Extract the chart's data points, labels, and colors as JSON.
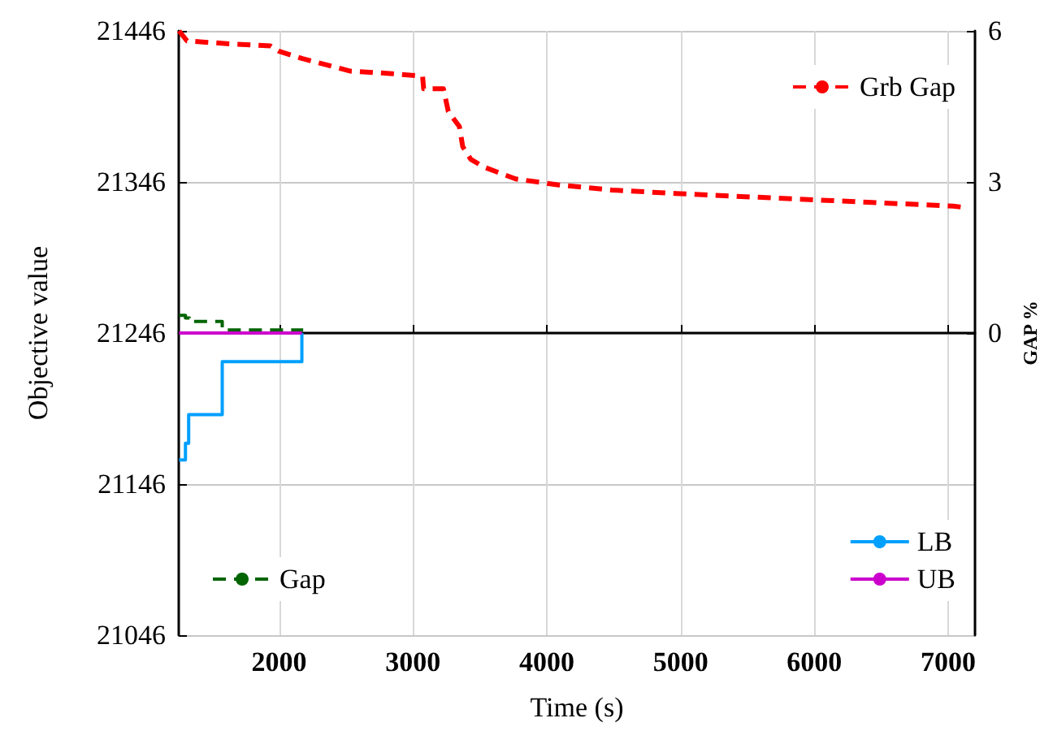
{
  "chart_data": {
    "type": "line",
    "xlabel": "Time (s)",
    "ylabel": "Objective value",
    "y2label": "GAP %",
    "xlim": [
      1250,
      7200
    ],
    "xticks": [
      2000,
      3000,
      4000,
      5000,
      6000,
      7000
    ],
    "ylim": [
      21046,
      21446
    ],
    "yticks": [
      21046,
      21146,
      21246,
      21346,
      21446
    ],
    "y2lim": [
      -6,
      6
    ],
    "y2ticks": [
      0,
      3,
      6
    ],
    "grid": true,
    "legend": "bottom right",
    "marker": "none",
    "series": [
      {
        "name": "Grb Gap",
        "color": "#ff0000",
        "axis": "y2",
        "line_style": "dashed",
        "x": [
          1252,
          1312,
          1647,
          1935,
          1995,
          2174,
          2533,
          2845,
          3072,
          3080,
          3228,
          3264,
          3347,
          3372,
          3432,
          3527,
          3767,
          4090,
          4486,
          4964,
          5958,
          7036,
          7100
        ],
        "values": [
          6.0,
          5.8,
          5.74,
          5.7,
          5.6,
          5.45,
          5.2,
          5.15,
          5.1,
          4.85,
          4.85,
          4.4,
          4.1,
          3.7,
          3.45,
          3.3,
          3.06,
          2.94,
          2.84,
          2.77,
          2.65,
          2.52,
          2.5
        ]
      },
      {
        "name": "Gap",
        "color": "#006400",
        "axis": "y2",
        "line_style": "dashed",
        "type": "step",
        "x": [
          1252,
          1300,
          1330,
          1575,
          2180
        ],
        "values": [
          0.35,
          0.3,
          0.23,
          0.06,
          0.06
        ]
      },
      {
        "name": "LB",
        "color": "#00a0ff",
        "type": "step",
        "x": [
          1252,
          1300,
          1324,
          1575,
          2170
        ],
        "values": [
          21162,
          21173,
          21192,
          21227,
          21246
        ]
      },
      {
        "name": "UB",
        "color": "#cc00cc",
        "x": [
          1252,
          2170
        ],
        "values": [
          21246,
          21246
        ]
      }
    ]
  }
}
